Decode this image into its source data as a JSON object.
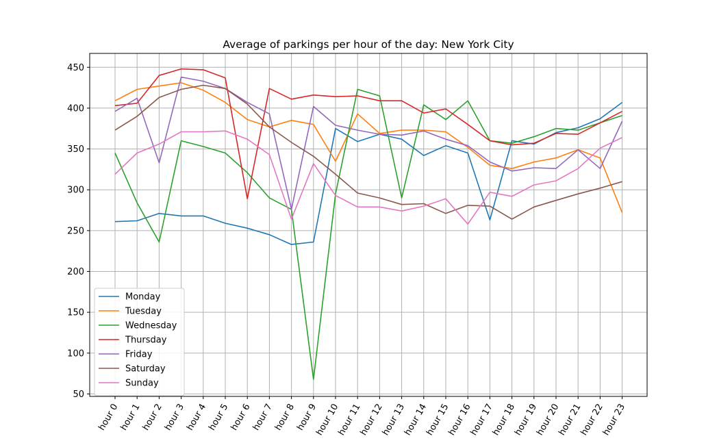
{
  "chart_data": {
    "type": "line",
    "title": "Average of parkings per hour of the day: New York City",
    "xlabel": "",
    "ylabel": "",
    "categories": [
      "hour 0",
      "hour 1",
      "hour 2",
      "hour 3",
      "hour 4",
      "hour 5",
      "hour 6",
      "hour 7",
      "hour 8",
      "hour 9",
      "hour 10",
      "hour 11",
      "hour 12",
      "hour 13",
      "hour 14",
      "hour 15",
      "hour 16",
      "hour 17",
      "hour 18",
      "hour 19",
      "hour 20",
      "hour 21",
      "hour 22",
      "hour 23"
    ],
    "ylim": [
      47,
      467
    ],
    "yticks": [
      50,
      100,
      150,
      200,
      250,
      300,
      350,
      400,
      450
    ],
    "grid": true,
    "legend_position": "lower-left",
    "series": [
      {
        "name": "Monday",
        "color": "#1f77b4",
        "values": [
          261,
          262,
          271,
          268,
          268,
          259,
          253,
          245,
          233,
          236,
          375,
          359,
          368,
          362,
          342,
          354,
          345,
          263,
          360,
          356,
          370,
          376,
          387,
          407
        ]
      },
      {
        "name": "Tuesday",
        "color": "#ff7f0e",
        "values": [
          409,
          423,
          427,
          431,
          422,
          407,
          386,
          377,
          385,
          380,
          335,
          393,
          369,
          373,
          373,
          371,
          352,
          330,
          326,
          334,
          339,
          349,
          339,
          272
        ]
      },
      {
        "name": "Wednesday",
        "color": "#2ca02c",
        "values": [
          345,
          284,
          236,
          360,
          353,
          345,
          321,
          290,
          276,
          68,
          295,
          423,
          415,
          290,
          404,
          386,
          409,
          360,
          357,
          365,
          375,
          373,
          382,
          391
        ]
      },
      {
        "name": "Thursday",
        "color": "#d62728",
        "values": [
          403,
          406,
          440,
          448,
          447,
          437,
          289,
          424,
          411,
          416,
          414,
          415,
          409,
          409,
          394,
          399,
          380,
          360,
          355,
          357,
          369,
          368,
          382,
          396
        ]
      },
      {
        "name": "Friday",
        "color": "#9467bd",
        "values": [
          396,
          412,
          333,
          438,
          433,
          424,
          407,
          393,
          276,
          402,
          379,
          373,
          368,
          367,
          372,
          362,
          354,
          334,
          323,
          327,
          326,
          349,
          326,
          384
        ]
      },
      {
        "name": "Saturday",
        "color": "#8c564b",
        "values": [
          373,
          390,
          413,
          423,
          428,
          424,
          405,
          377,
          358,
          341,
          319,
          296,
          290,
          282,
          283,
          271,
          281,
          280,
          264,
          279,
          287,
          295,
          302,
          310
        ]
      },
      {
        "name": "Sunday",
        "color": "#e377c2",
        "values": [
          319,
          345,
          356,
          371,
          371,
          372,
          362,
          343,
          264,
          332,
          293,
          279,
          279,
          274,
          280,
          289,
          258,
          297,
          292,
          306,
          311,
          326,
          351,
          364
        ]
      }
    ]
  }
}
